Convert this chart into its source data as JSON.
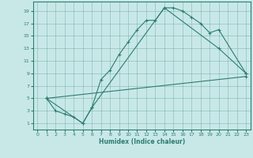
{
  "xlabel": "Humidex (Indice chaleur)",
  "background_color": "#c8e8e8",
  "line_color": "#2e7d6e",
  "xlim": [
    -0.5,
    23.5
  ],
  "ylim": [
    0,
    20.5
  ],
  "xticks": [
    0,
    1,
    2,
    3,
    4,
    5,
    6,
    7,
    8,
    9,
    10,
    11,
    12,
    13,
    14,
    15,
    16,
    17,
    18,
    19,
    20,
    21,
    22,
    23
  ],
  "yticks": [
    1,
    3,
    5,
    7,
    9,
    11,
    13,
    15,
    17,
    19
  ],
  "line1_x": [
    1,
    2,
    3,
    4,
    5,
    6,
    7,
    8,
    9,
    10,
    11,
    12,
    13,
    14,
    15,
    16,
    17,
    18,
    19,
    20,
    23
  ],
  "line1_y": [
    5,
    3,
    2.5,
    2,
    1,
    3.5,
    8,
    9.5,
    12,
    14,
    16,
    17.5,
    17.5,
    19.5,
    19.5,
    19,
    18,
    17,
    15.5,
    16,
    9
  ],
  "line2_x": [
    1,
    5,
    6,
    14,
    20,
    23
  ],
  "line2_y": [
    5,
    1,
    3.5,
    19.5,
    13,
    9
  ],
  "line3_x": [
    1,
    23
  ],
  "line3_y": [
    5,
    8.5
  ]
}
